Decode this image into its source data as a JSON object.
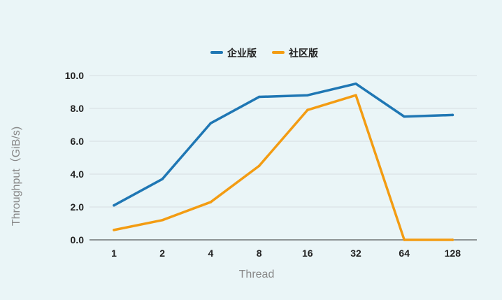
{
  "chart_data": {
    "type": "line",
    "title": "",
    "xlabel": "Thread",
    "ylabel": "Throughput（GiB/s)",
    "categories": [
      "1",
      "2",
      "4",
      "8",
      "16",
      "32",
      "64",
      "128"
    ],
    "y_ticks": [
      "0.0",
      "2.0",
      "4.0",
      "6.0",
      "8.0",
      "10.0"
    ],
    "ylim": [
      0,
      10
    ],
    "grid": true,
    "legend_position": "top",
    "series": [
      {
        "name": "企业版",
        "color": "#1f77b4",
        "values": [
          2.1,
          3.7,
          7.1,
          8.7,
          8.8,
          9.5,
          7.5,
          7.6
        ]
      },
      {
        "name": "社区版",
        "color": "#f39c12",
        "values": [
          0.6,
          1.2,
          2.3,
          4.5,
          7.9,
          8.8,
          0.0,
          0.0
        ]
      }
    ]
  }
}
